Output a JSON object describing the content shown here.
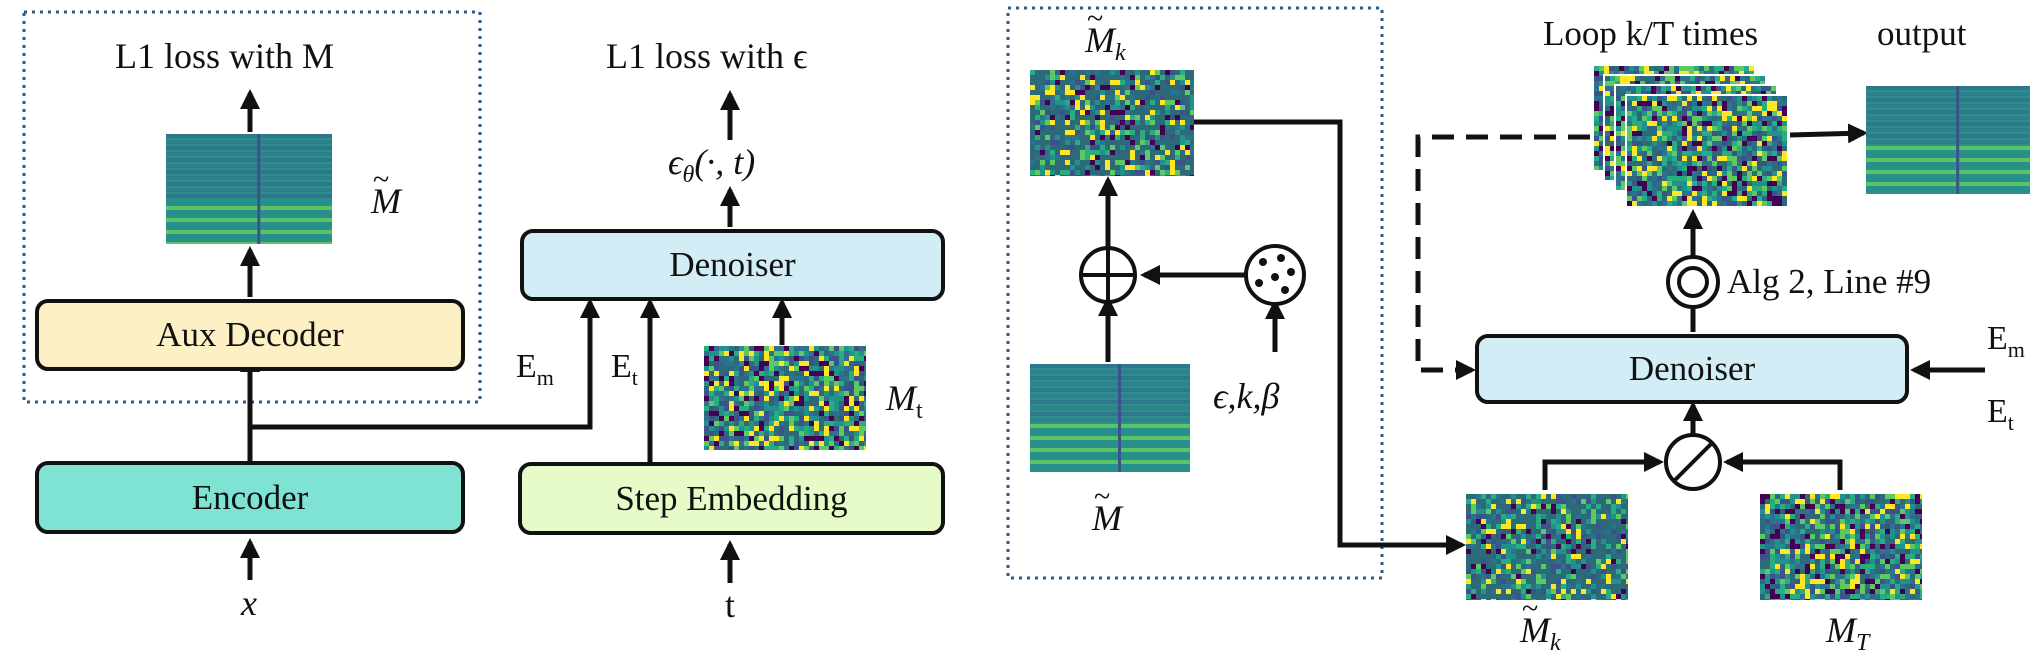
{
  "left": {
    "top_label_loss_m": "L1 loss with M",
    "top_label_loss_eps": "L1 loss with ϵ",
    "aux_decoder": "Aux Decoder",
    "encoder": "Encoder",
    "denoiser": "Denoiser",
    "step_embedding": "Step Embedding",
    "m_tilde": "M",
    "eps_theta": "ϵθ(·, t)",
    "em": "E",
    "em_sub": "m",
    "et": "E",
    "et_sub": "t",
    "mt": "M",
    "mt_sub": "t",
    "x_input": "x",
    "t_input": "t"
  },
  "right": {
    "mk_top": "M",
    "mk_top_sub": "k",
    "m_tilde_bottom": "M",
    "eps_k_beta": "ϵ,k,β",
    "loop_label": "Loop k/T times",
    "output_label": "output",
    "alg_label": "Alg 2, Line #9",
    "denoiser": "Denoiser",
    "em": "E",
    "em_sub": "m",
    "et": "E",
    "et_sub": "t",
    "mk_bottom": "M",
    "mk_bottom_sub": "k",
    "mT": "M",
    "mT_sub": "T"
  },
  "colors": {
    "aux_decoder_fill": "#fdf0c4",
    "encoder_fill": "#7ee3d2",
    "denoiser_fill": "#d2edf5",
    "step_embedding_fill": "#e6fbc8",
    "dotted_frame": "#2a5a8a",
    "spec_clean_bg": "#2e8e8a",
    "spec_noisy_bg": "#2c6a7a"
  }
}
